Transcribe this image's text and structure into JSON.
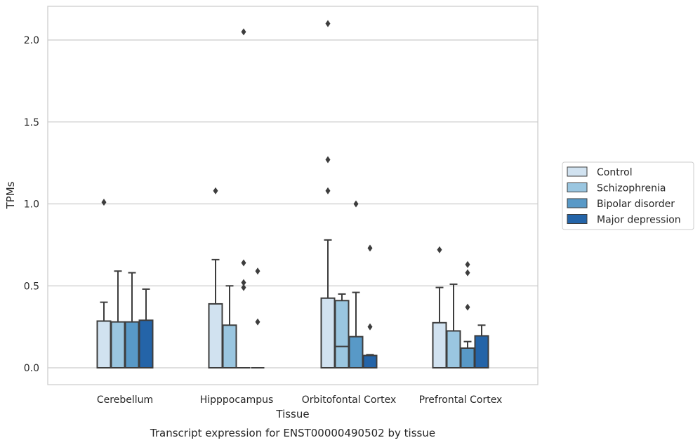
{
  "chart_data": {
    "type": "box",
    "title": "",
    "xlabel": "Tissue",
    "ylabel": "TPMs",
    "caption": "Transcript expression for ENST00000490502 by tissue",
    "ylim": [
      -0.1,
      2.22
    ],
    "yticks": [
      "0.0",
      "0.5",
      "1.0",
      "1.5",
      "2.0"
    ],
    "grid": "horizontal",
    "legend_position": "right",
    "categories": [
      "Cerebellum",
      "Hipppocampus",
      "Orbitofontal Cortex",
      "Prefrontal Cortex"
    ],
    "series": [
      {
        "name": "Control",
        "color": "#d1e2f0",
        "boxes": [
          {
            "q1": 0.0,
            "median": 0.0,
            "q3": 0.285,
            "whisker_low": 0.0,
            "whisker_high": 0.4,
            "outliers": [
              1.01
            ]
          },
          {
            "q1": 0.0,
            "median": 0.0,
            "q3": 0.39,
            "whisker_low": 0.0,
            "whisker_high": 0.66,
            "outliers": [
              1.08
            ]
          },
          {
            "q1": 0.0,
            "median": 0.0,
            "q3": 0.425,
            "whisker_low": 0.0,
            "whisker_high": 0.78,
            "outliers": [
              2.1,
              1.27,
              1.08
            ]
          },
          {
            "q1": 0.0,
            "median": 0.0,
            "q3": 0.275,
            "whisker_low": 0.0,
            "whisker_high": 0.49,
            "outliers": [
              0.72
            ]
          }
        ]
      },
      {
        "name": "Schizophrenia",
        "color": "#9ac6e0",
        "boxes": [
          {
            "q1": 0.0,
            "median": 0.0,
            "q3": 0.28,
            "whisker_low": 0.0,
            "whisker_high": 0.59,
            "outliers": []
          },
          {
            "q1": 0.0,
            "median": 0.0,
            "q3": 0.26,
            "whisker_low": 0.0,
            "whisker_high": 0.5,
            "outliers": []
          },
          {
            "q1": 0.0,
            "median": 0.13,
            "q3": 0.41,
            "whisker_low": 0.0,
            "whisker_high": 0.45,
            "outliers": []
          },
          {
            "q1": 0.0,
            "median": 0.0,
            "q3": 0.225,
            "whisker_low": 0.0,
            "whisker_high": 0.51,
            "outliers": []
          }
        ]
      },
      {
        "name": "Bipolar disorder",
        "color": "#5899c7",
        "boxes": [
          {
            "q1": 0.0,
            "median": 0.0,
            "q3": 0.28,
            "whisker_low": 0.0,
            "whisker_high": 0.58,
            "outliers": []
          },
          {
            "q1": 0.0,
            "median": 0.0,
            "q3": 0.0,
            "whisker_low": 0.0,
            "whisker_high": 0.0,
            "outliers": [
              0.64,
              0.52,
              0.49,
              2.05
            ]
          },
          {
            "q1": 0.0,
            "median": 0.0,
            "q3": 0.19,
            "whisker_low": 0.0,
            "whisker_high": 0.46,
            "outliers": [
              1.0
            ]
          },
          {
            "q1": 0.0,
            "median": 0.0,
            "q3": 0.12,
            "whisker_low": 0.0,
            "whisker_high": 0.16,
            "outliers": [
              0.63,
              0.58,
              0.37
            ]
          }
        ]
      },
      {
        "name": "Major depression",
        "color": "#2464a8",
        "boxes": [
          {
            "q1": 0.0,
            "median": 0.0,
            "q3": 0.29,
            "whisker_low": 0.0,
            "whisker_high": 0.48,
            "outliers": []
          },
          {
            "q1": 0.0,
            "median": 0.0,
            "q3": 0.0,
            "whisker_low": 0.0,
            "whisker_high": 0.0,
            "outliers": [
              0.59,
              0.28
            ]
          },
          {
            "q1": 0.0,
            "median": 0.0,
            "q3": 0.075,
            "whisker_low": 0.0,
            "whisker_high": 0.08,
            "outliers": [
              0.73,
              0.25
            ]
          },
          {
            "q1": 0.0,
            "median": 0.0,
            "q3": 0.195,
            "whisker_low": 0.0,
            "whisker_high": 0.26,
            "outliers": []
          }
        ]
      }
    ]
  }
}
